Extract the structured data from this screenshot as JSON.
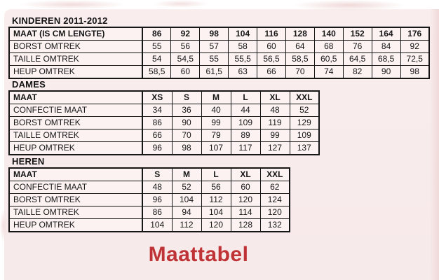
{
  "page": {
    "background_color": "#ffffff",
    "paper_color": "#f8ecec",
    "accent_red": "#bf3336",
    "footer_title": "Maattabel"
  },
  "tables": [
    {
      "section_label": "KINDEREN 2011-2012",
      "header": [
        "MAAT (IS CM LENGTE)",
        "86",
        "92",
        "98",
        "104",
        "116",
        "128",
        "140",
        "152",
        "164",
        "176"
      ],
      "rows": [
        [
          "BORST OMTREK",
          "55",
          "56",
          "57",
          "58",
          "60",
          "64",
          "68",
          "76",
          "84",
          "92"
        ],
        [
          "TAILLE OMTREK",
          "54",
          "54,5",
          "55",
          "55,5",
          "56,5",
          "58,5",
          "60,5",
          "64,5",
          "68,5",
          "72,5"
        ],
        [
          "HEUP OMTREK",
          "58,5",
          "60",
          "61,5",
          "63",
          "66",
          "70",
          "74",
          "82",
          "90",
          "98"
        ]
      ]
    },
    {
      "section_label": "DAMES",
      "header": [
        "MAAT",
        "XS",
        "S",
        "M",
        "L",
        "XL",
        "XXL"
      ],
      "rows": [
        [
          "CONFECTIE MAAT",
          "34",
          "36",
          "40",
          "44",
          "48",
          "52"
        ],
        [
          "BORST OMTREK",
          "86",
          "90",
          "99",
          "109",
          "119",
          "129"
        ],
        [
          "TAILLE OMTREK",
          "66",
          "70",
          "79",
          "89",
          "99",
          "109"
        ],
        [
          "HEUP OMTREK",
          "96",
          "98",
          "107",
          "117",
          "127",
          "137"
        ]
      ]
    },
    {
      "section_label": "HEREN",
      "header": [
        "MAAT",
        "S",
        "M",
        "L",
        "XL",
        "XXL"
      ],
      "rows": [
        [
          "CONFECTIE MAAT",
          "48",
          "52",
          "56",
          "60",
          "62"
        ],
        [
          "BORST OMTREK",
          "96",
          "104",
          "112",
          "120",
          "124"
        ],
        [
          "TAILLE OMTREK",
          "86",
          "94",
          "104",
          "114",
          "120"
        ],
        [
          "HEUP OMTREK",
          "104",
          "112",
          "120",
          "128",
          "132"
        ]
      ]
    }
  ]
}
